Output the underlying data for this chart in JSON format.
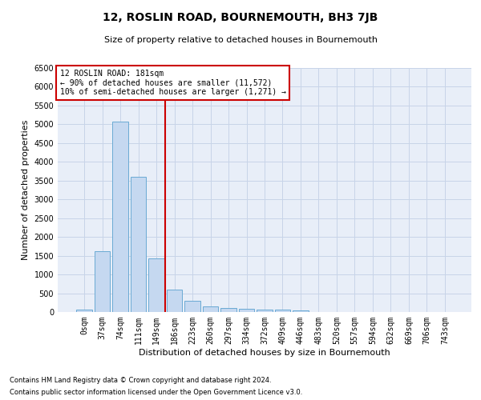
{
  "title": "12, ROSLIN ROAD, BOURNEMOUTH, BH3 7JB",
  "subtitle": "Size of property relative to detached houses in Bournemouth",
  "xlabel": "Distribution of detached houses by size in Bournemouth",
  "ylabel": "Number of detached properties",
  "footnote1": "Contains HM Land Registry data © Crown copyright and database right 2024.",
  "footnote2": "Contains public sector information licensed under the Open Government Licence v3.0.",
  "bar_labels": [
    "0sqm",
    "37sqm",
    "74sqm",
    "111sqm",
    "149sqm",
    "186sqm",
    "223sqm",
    "260sqm",
    "297sqm",
    "334sqm",
    "372sqm",
    "409sqm",
    "446sqm",
    "483sqm",
    "520sqm",
    "557sqm",
    "594sqm",
    "632sqm",
    "669sqm",
    "706sqm",
    "743sqm"
  ],
  "bar_values": [
    60,
    1630,
    5080,
    3600,
    1420,
    590,
    290,
    140,
    100,
    75,
    55,
    55,
    50,
    0,
    0,
    0,
    0,
    0,
    0,
    0,
    0
  ],
  "bar_color": "#c5d8f0",
  "bar_edge_color": "#6aaad4",
  "grid_color": "#c8d4e8",
  "background_color": "#e8eef8",
  "vline_x_index": 5,
  "vline_color": "#cc0000",
  "annotation_line1": "12 ROSLIN ROAD: 181sqm",
  "annotation_line2": "← 90% of detached houses are smaller (11,572)",
  "annotation_line3": "10% of semi-detached houses are larger (1,271) →",
  "annotation_box_color": "#cc0000",
  "ylim": [
    0,
    6500
  ],
  "yticks": [
    0,
    500,
    1000,
    1500,
    2000,
    2500,
    3000,
    3500,
    4000,
    4500,
    5000,
    5500,
    6000,
    6500
  ],
  "title_fontsize": 10,
  "subtitle_fontsize": 8,
  "ylabel_fontsize": 8,
  "xlabel_fontsize": 8,
  "tick_fontsize": 7,
  "annotation_fontsize": 7,
  "footnote_fontsize": 6
}
